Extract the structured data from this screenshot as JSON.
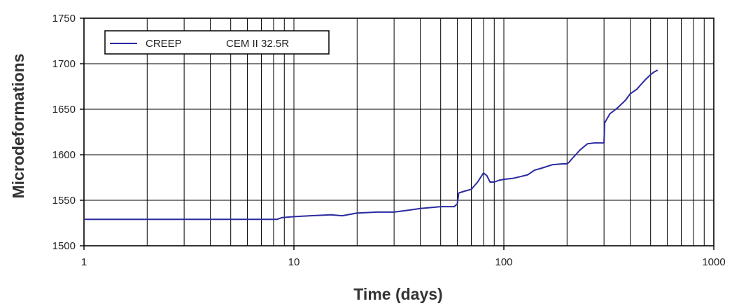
{
  "chart_data": {
    "type": "line",
    "xlabel": "Time (days)",
    "ylabel": "Microdeformations",
    "x_scale": "log",
    "xlim": [
      1,
      1000
    ],
    "ylim": [
      1500,
      1750
    ],
    "x_ticks": [
      1,
      10,
      100,
      1000
    ],
    "x_tick_labels": [
      "1",
      "10",
      "100",
      "1000"
    ],
    "y_ticks": [
      1500,
      1550,
      1600,
      1650,
      1700,
      1750
    ],
    "y_tick_labels": [
      "1500",
      "1550",
      "1600",
      "1650",
      "1700",
      "1750"
    ],
    "grid": true,
    "legend": {
      "placement": "top-left",
      "label": "CREEP",
      "extra_text": "CEM  II 32.5R"
    },
    "series": [
      {
        "name": "CREEP",
        "color": "#2a2aa0",
        "points": [
          [
            1,
            1529
          ],
          [
            2,
            1529
          ],
          [
            4,
            1529
          ],
          [
            7,
            1529
          ],
          [
            8.3,
            1529
          ],
          [
            8.8,
            1531
          ],
          [
            10,
            1532
          ],
          [
            12,
            1533
          ],
          [
            15,
            1534
          ],
          [
            17,
            1533
          ],
          [
            20,
            1536
          ],
          [
            25,
            1537
          ],
          [
            30,
            1537
          ],
          [
            35,
            1539
          ],
          [
            40,
            1541
          ],
          [
            45,
            1542
          ],
          [
            50,
            1543
          ],
          [
            58,
            1543
          ],
          [
            60,
            1546
          ],
          [
            61,
            1558
          ],
          [
            65,
            1560
          ],
          [
            70,
            1562
          ],
          [
            75,
            1570
          ],
          [
            80,
            1580
          ],
          [
            83,
            1577
          ],
          [
            86,
            1570
          ],
          [
            90,
            1570
          ],
          [
            95,
            1572
          ],
          [
            100,
            1573
          ],
          [
            110,
            1574
          ],
          [
            120,
            1576
          ],
          [
            130,
            1578
          ],
          [
            140,
            1583
          ],
          [
            150,
            1585
          ],
          [
            170,
            1589
          ],
          [
            190,
            1590
          ],
          [
            200,
            1590
          ],
          [
            205,
            1592
          ],
          [
            210,
            1595
          ],
          [
            220,
            1600
          ],
          [
            230,
            1605
          ],
          [
            250,
            1612
          ],
          [
            270,
            1613
          ],
          [
            295,
            1613
          ],
          [
            300,
            1613
          ],
          [
            302,
            1635
          ],
          [
            320,
            1645
          ],
          [
            350,
            1652
          ],
          [
            380,
            1660
          ],
          [
            400,
            1667
          ],
          [
            430,
            1672
          ],
          [
            470,
            1682
          ],
          [
            500,
            1688
          ],
          [
            520,
            1691
          ],
          [
            540,
            1693
          ]
        ]
      }
    ]
  }
}
